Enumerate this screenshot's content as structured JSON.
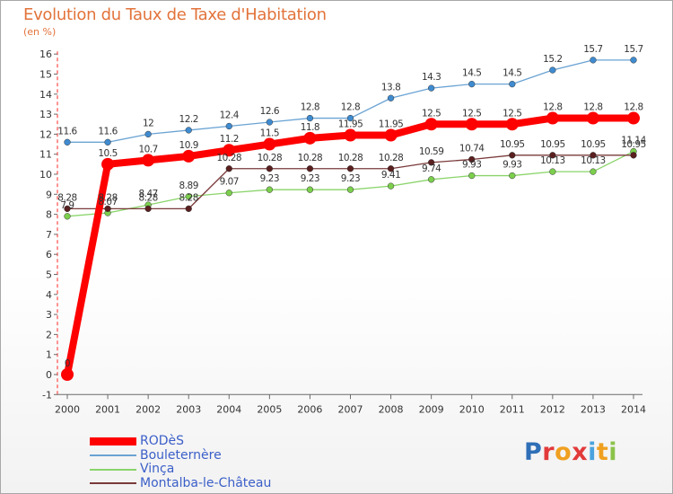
{
  "title": "Evolution du Taux de Taxe d'Habitation",
  "units_label": "(en %)",
  "logo_text": "Proxiti",
  "chart_data": {
    "type": "line",
    "x": [
      "2000",
      "2001",
      "2002",
      "2003",
      "2004",
      "2005",
      "2006",
      "2007",
      "2008",
      "2009",
      "2010",
      "2011",
      "2012",
      "2013",
      "2014"
    ],
    "ylim": [
      -1,
      16
    ],
    "yticks": [
      -1,
      0,
      1,
      2,
      3,
      4,
      5,
      6,
      7,
      8,
      9,
      10,
      11,
      12,
      13,
      14,
      15,
      16
    ],
    "grid": false,
    "legend_position": "bottom-left",
    "series": [
      {
        "name": "RODèS",
        "color": "#ff0000",
        "values": [
          0,
          10.5,
          10.7,
          10.9,
          11.2,
          11.5,
          11.8,
          11.95,
          11.95,
          12.5,
          12.5,
          12.5,
          12.8,
          12.8,
          12.8
        ],
        "labels": [
          "0",
          "10.5",
          "10.7",
          "10.9",
          "11.2",
          "11.5",
          "11.8",
          "11.95",
          "11.95",
          "12.5",
          "12.5",
          "12.5",
          "12.8",
          "12.8",
          "12.8"
        ]
      },
      {
        "name": "Bouleternère",
        "color": "#6aa3d3",
        "values": [
          11.6,
          11.6,
          12,
          12.2,
          12.4,
          12.6,
          12.8,
          12.8,
          13.8,
          14.3,
          14.5,
          14.5,
          15.2,
          15.7,
          15.7
        ],
        "labels": [
          "11.6",
          "11.6",
          "12",
          "12.2",
          "12.4",
          "12.6",
          "12.8",
          "12.8",
          "13.8",
          "14.3",
          "14.5",
          "14.5",
          "15.2",
          "15.7",
          "15.7"
        ]
      },
      {
        "name": "Vinça",
        "color": "#8ad46a",
        "values": [
          7.9,
          8.07,
          8.47,
          8.89,
          9.07,
          9.23,
          9.23,
          9.23,
          9.41,
          9.74,
          9.93,
          9.93,
          10.13,
          10.13,
          11.14
        ],
        "labels": [
          "7.9",
          "8.07",
          "8.47",
          "8.89",
          "9.07",
          "9.23",
          "9.23",
          "9.23",
          "9.41",
          "9.74",
          "9.93",
          "9.93",
          "10.13",
          "10.13",
          "11.14"
        ]
      },
      {
        "name": "Montalba-le-Château",
        "color": "#7a3a3a",
        "values": [
          8.28,
          8.28,
          8.28,
          8.28,
          10.28,
          10.28,
          10.28,
          10.28,
          10.28,
          10.59,
          10.74,
          10.95,
          10.95,
          10.95,
          10.95
        ],
        "labels": [
          "8.28",
          "8.28",
          "8.28",
          "8.28",
          "10.28",
          "10.28",
          "10.28",
          "10.28",
          "10.28",
          "10.59",
          "10.74",
          "10.95",
          "10.95",
          "10.95",
          "10.95"
        ]
      }
    ]
  }
}
